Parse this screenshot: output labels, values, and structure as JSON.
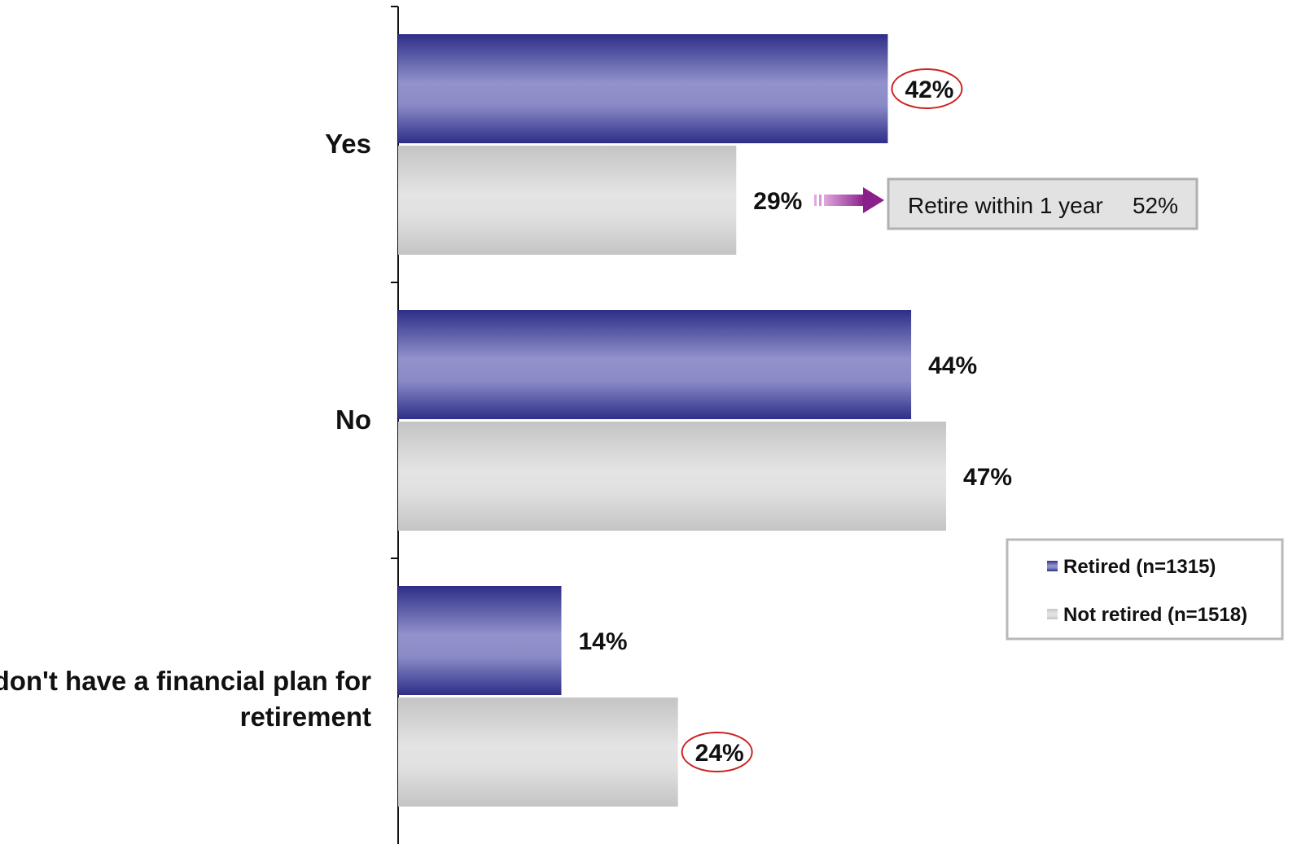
{
  "chart_data": {
    "type": "bar",
    "orientation": "horizontal",
    "categories": [
      "Yes",
      "No",
      "I don't have a financial plan for retirement"
    ],
    "series": [
      {
        "name": "Retired (n=1315)",
        "values": [
          42,
          44,
          14
        ],
        "color": "#5a5aa8"
      },
      {
        "name": "Not retired (n=1518)",
        "values": [
          29,
          47,
          24
        ],
        "color": "#d6d6d6"
      }
    ],
    "value_labels": [
      [
        "42%",
        "44%",
        "14%"
      ],
      [
        "29%",
        "47%",
        "24%"
      ]
    ],
    "highlighted": [
      {
        "series": 0,
        "category": 0
      },
      {
        "series": 1,
        "category": 2
      }
    ],
    "xlim": [
      0,
      50
    ],
    "grid": false,
    "legend_position": "right",
    "annotation": {
      "series": 1,
      "category": 0,
      "label": "Retire within 1 year",
      "value": "52%"
    }
  },
  "colors": {
    "retired_dark": "#2e2e88",
    "retired_light": "#9c9cd0",
    "not_retired_dark": "#bdbdbd",
    "not_retired_light": "#e6e6e6",
    "highlight_ring": "#cc2222",
    "arrow": "#8a1f8a"
  }
}
